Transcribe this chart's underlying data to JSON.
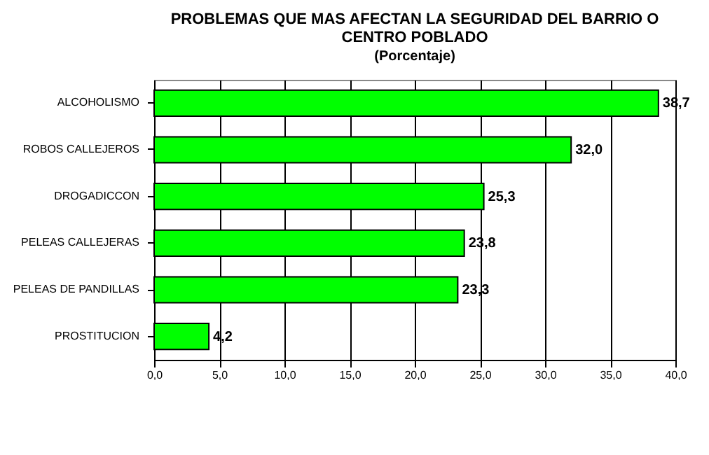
{
  "chart_data": {
    "type": "bar",
    "orientation": "horizontal",
    "title": "PROBLEMAS QUE MAS AFECTAN LA SEGURIDAD DEL BARRIO O CENTRO POBLADO",
    "subtitle": "(Porcentaje)",
    "categories": [
      "ALCOHOLISMO",
      "ROBOS CALLEJEROS",
      "DROGADICCON",
      "PELEAS CALLEJERAS",
      "PELEAS DE PANDILLAS",
      "PROSTITUCION"
    ],
    "values": [
      38.7,
      32.0,
      25.3,
      23.8,
      23.3,
      4.2
    ],
    "value_labels": [
      "38,7",
      "32,0",
      "25,3",
      "23,8",
      "23,3",
      "4,2"
    ],
    "color": "#00ff00",
    "xlim": [
      0,
      40
    ],
    "xticks": [
      {
        "value": 0,
        "label": "0,0"
      },
      {
        "value": 5,
        "label": "5,0"
      },
      {
        "value": 10,
        "label": "10,0"
      },
      {
        "value": 15,
        "label": "15,0"
      },
      {
        "value": 20,
        "label": "20,0"
      },
      {
        "value": 25,
        "label": "25,0"
      },
      {
        "value": 30,
        "label": "30,0"
      },
      {
        "value": 35,
        "label": "35,0"
      },
      {
        "value": 40,
        "label": "40,0"
      }
    ],
    "grid": "x"
  }
}
